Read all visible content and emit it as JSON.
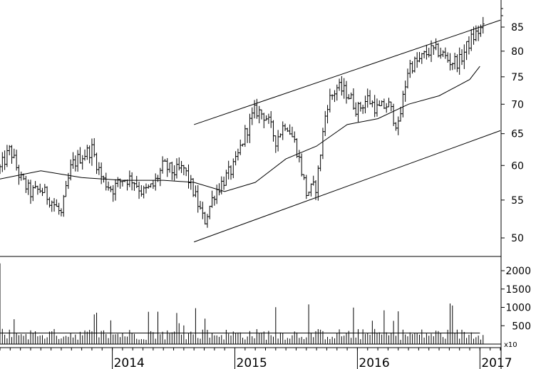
{
  "chart_data": [
    {
      "type": "ohlc",
      "panel": "price",
      "scale": "log",
      "ylim": [
        47,
        88
      ],
      "yticks": [
        50,
        55,
        60,
        65,
        70,
        75,
        80,
        85
      ],
      "grid": false,
      "x_axis": {
        "start": "2013-02",
        "end": "2017-03",
        "labels": [
          "2014",
          "2015",
          "2016",
          "2017"
        ]
      },
      "series": [
        {
          "kind": "weekly_price_bars",
          "anchors": [
            [
              "2013-02",
              59.5
            ],
            [
              "2013-03",
              62.5
            ],
            [
              "2013-04",
              58
            ],
            [
              "2013-05",
              56
            ],
            [
              "2013-06",
              56.5
            ],
            [
              "2013-07",
              55
            ],
            [
              "2013-08",
              53
            ],
            [
              "2013-09",
              60
            ],
            [
              "2013-10",
              61.5
            ],
            [
              "2013-11",
              62.5
            ],
            [
              "2013-12",
              58
            ],
            [
              "2014-01",
              56.5
            ],
            [
              "2014-02",
              58
            ],
            [
              "2014-03",
              58
            ],
            [
              "2014-04",
              56
            ],
            [
              "2014-05",
              57
            ],
            [
              "2014-06",
              60
            ],
            [
              "2014-07",
              59
            ],
            [
              "2014-08",
              59.5
            ],
            [
              "2014-09",
              56
            ],
            [
              "2014-10",
              52
            ],
            [
              "2014-11",
              56
            ],
            [
              "2014-12",
              58
            ],
            [
              "2015-01",
              60
            ],
            [
              "2015-02",
              65
            ],
            [
              "2015-03",
              69
            ],
            [
              "2015-04",
              68
            ],
            [
              "2015-05",
              64
            ],
            [
              "2015-06",
              67
            ],
            [
              "2015-07",
              63
            ],
            [
              "2015-08",
              56
            ],
            [
              "2015-09",
              57
            ],
            [
              "2015-10",
              70
            ],
            [
              "2015-11",
              73
            ],
            [
              "2015-12",
              72
            ],
            [
              "2016-01",
              69
            ],
            [
              "2016-02",
              71
            ],
            [
              "2016-03",
              69
            ],
            [
              "2016-04",
              70
            ],
            [
              "2016-05",
              66
            ],
            [
              "2016-06",
              77
            ],
            [
              "2016-07",
              78
            ],
            [
              "2016-08",
              80
            ],
            [
              "2016-09",
              80
            ],
            [
              "2016-10",
              78
            ],
            [
              "2016-11",
              78
            ],
            [
              "2016-12",
              82
            ],
            [
              "2017-01",
              84.5
            ]
          ]
        },
        {
          "kind": "moving_average",
          "points": [
            [
              "2013-02",
              58
            ],
            [
              "2013-06",
              59.2
            ],
            [
              "2013-10",
              58.2
            ],
            [
              "2014-02",
              57.8
            ],
            [
              "2014-06",
              57.8
            ],
            [
              "2014-09",
              57.5
            ],
            [
              "2014-12",
              56.2
            ],
            [
              "2015-03",
              57.5
            ],
            [
              "2015-06",
              61
            ],
            [
              "2015-09",
              63
            ],
            [
              "2015-12",
              66.5
            ],
            [
              "2016-03",
              67.5
            ],
            [
              "2016-06",
              70
            ],
            [
              "2016-09",
              71.5
            ],
            [
              "2016-12",
              74.5
            ],
            [
              "2017-01",
              77
            ]
          ]
        }
      ],
      "trendlines": [
        {
          "from": [
            "2014-09",
            66.5
          ],
          "to": [
            "2017-03",
            86.5
          ]
        },
        {
          "from": [
            "2014-09",
            49.5
          ],
          "to": [
            "2017-03",
            65.5
          ]
        }
      ]
    },
    {
      "type": "bar",
      "panel": "volume",
      "ylim": [
        0,
        2300
      ],
      "yticks": [
        500,
        1000,
        1500,
        2000
      ],
      "unit": "x10",
      "spikes": [
        [
          "2013-02",
          2200
        ]
      ],
      "typical": 280,
      "moving_average_level": 300
    }
  ]
}
